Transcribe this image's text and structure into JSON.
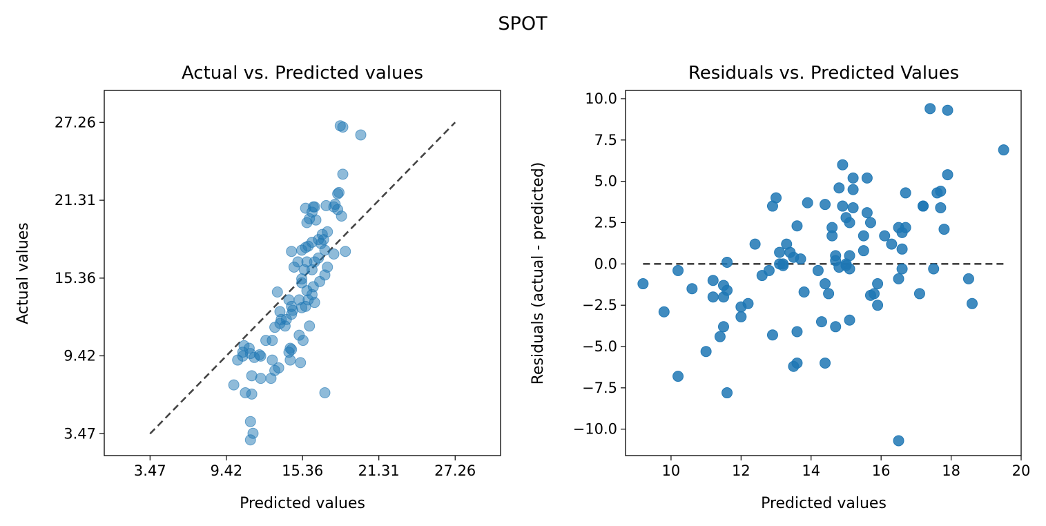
{
  "figure": {
    "suptitle": "SPOT"
  },
  "chart_data": [
    {
      "type": "scatter",
      "title": "Actual vs. Predicted values",
      "xlabel": "Predicted values",
      "ylabel": "Actual values",
      "xlim": [
        -0.1,
        30.8
      ],
      "ylim": [
        1.8,
        29.7
      ],
      "xticks": [
        3.47,
        9.42,
        15.36,
        21.31,
        27.26
      ],
      "xtick_labels": [
        "3.47",
        "9.42",
        "15.36",
        "21.31",
        "27.26"
      ],
      "yticks": [
        3.47,
        9.42,
        15.36,
        21.31,
        27.26
      ],
      "ytick_labels": [
        "3.47",
        "9.42",
        "15.36",
        "21.31",
        "27.26"
      ],
      "reference_line": {
        "x": [
          3.47,
          27.26
        ],
        "y": [
          3.47,
          27.26
        ],
        "style": "dashed",
        "color": "#444444"
      },
      "point_color": "#1f77b4",
      "point_alpha": 0.5,
      "grid": false,
      "x": [
        18.3,
        18.5,
        19.9,
        18.5,
        18.2,
        18.1,
        17.9,
        17.2,
        16.2,
        16.3,
        17.8,
        18.1,
        18.4,
        15.6,
        15.9,
        16.1,
        15.7,
        16.4,
        17.3,
        16.9,
        17.0,
        16.6,
        16.1,
        16.8,
        15.8,
        15.3,
        18.7,
        17.1,
        17.8,
        16.6,
        15.6,
        14.5,
        15.7,
        16.3,
        15.0,
        15.5,
        16.1,
        17.3,
        17.1,
        15.3,
        14.7,
        15.3,
        16.7,
        16.2,
        16.1,
        15.7,
        15.1,
        14.3,
        15.8,
        16.3,
        15.6,
        14.5,
        13.4,
        15.3,
        14.6,
        13.6,
        14.5,
        13.7,
        14.1,
        13.6,
        14.0,
        15.9,
        13.2,
        15.4,
        15.1,
        12.5,
        14.5,
        13.0,
        15.2,
        14.4,
        13.2,
        12.9,
        12.1,
        12.1,
        10.7,
        11.3,
        12.0,
        13.0,
        11.6,
        11.2,
        10.8,
        13.5,
        14.4,
        14.3,
        10.7,
        10.3,
        11.4,
        10.9,
        11.4,
        11.3,
        10.0,
        11.5,
        11.3,
        17.1
      ],
      "y": [
        27.0,
        26.9,
        26.3,
        23.3,
        21.9,
        21.8,
        21.0,
        20.9,
        20.8,
        20.8,
        20.8,
        20.6,
        20.1,
        20.7,
        19.9,
        20.4,
        19.6,
        19.8,
        18.9,
        18.7,
        18.3,
        18.3,
        18.1,
        18.0,
        17.8,
        17.5,
        17.4,
        17.5,
        17.2,
        16.9,
        17.7,
        17.4,
        16.6,
        16.6,
        16.6,
        16.0,
        16.0,
        16.2,
        15.6,
        15.3,
        16.2,
        15.0,
        15.1,
        14.7,
        14.1,
        14.4,
        13.7,
        13.7,
        13.7,
        13.5,
        13.2,
        13.2,
        14.3,
        13.1,
        12.9,
        12.8,
        12.6,
        12.2,
        12.2,
        11.9,
        11.7,
        11.7,
        11.6,
        10.6,
        11.0,
        10.6,
        9.9,
        10.6,
        8.9,
        9.1,
        8.3,
        7.7,
        7.7,
        9.4,
        9.4,
        9.6,
        9.5,
        9.1,
        9.3,
        10.0,
        10.2,
        8.5,
        10.0,
        9.7,
        9.7,
        9.1,
        7.9,
        6.6,
        6.5,
        4.4,
        7.2,
        3.5,
        3.0,
        6.6
      ]
    },
    {
      "type": "scatter",
      "title": "Residuals vs. Predicted Values",
      "xlabel": "Predicted values",
      "ylabel": "Residuals (actual - predicted)",
      "xlim": [
        8.7,
        20.0
      ],
      "ylim": [
        -11.6,
        10.5
      ],
      "xticks": [
        10,
        12,
        14,
        16,
        18,
        20
      ],
      "xtick_labels": [
        "10",
        "12",
        "14",
        "16",
        "18",
        "20"
      ],
      "yticks": [
        10.0,
        7.5,
        5.0,
        2.5,
        0.0,
        -2.5,
        -5.0,
        -7.5,
        -10.0
      ],
      "ytick_labels": [
        "10.0",
        "7.5",
        "5.0",
        "2.5",
        "0.0",
        "−2.5",
        "−5.0",
        "−7.5",
        "−10.0"
      ],
      "reference_line": {
        "x": [
          9.2,
          19.5
        ],
        "y": [
          0,
          0
        ],
        "style": "dashed",
        "color": "#444444"
      },
      "point_color": "#1f77b4",
      "point_alpha": 0.85,
      "grid": false,
      "x": [
        17.4,
        17.9,
        19.5,
        14.9,
        15.2,
        15.6,
        17.9,
        17.2,
        17.7,
        17.6,
        15.2,
        14.8,
        14.9,
        16.7,
        12.9,
        13.0,
        13.9,
        14.4,
        15.0,
        15.2,
        15.1,
        17.7,
        16.5,
        16.7,
        17.2,
        16.6,
        17.8,
        15.7,
        15.6,
        14.6,
        13.6,
        16.1,
        14.6,
        13.3,
        15.5,
        16.3,
        16.6,
        13.1,
        12.4,
        13.4,
        14.7,
        15.1,
        14.7,
        15.0,
        15.5,
        13.5,
        13.7,
        13.2,
        11.6,
        14.8,
        15.0,
        13.2,
        13.1,
        15.1,
        14.2,
        16.6,
        17.5,
        12.8,
        12.6,
        14.4,
        14.5,
        15.9,
        17.1,
        16.5,
        9.2,
        18.5,
        11.6,
        10.2,
        10.6,
        11.2,
        11.5,
        15.8,
        13.8,
        11.2,
        11.5,
        15.7,
        12.2,
        15.9,
        18.6,
        12.0,
        9.8,
        12.0,
        14.3,
        15.1,
        11.5,
        14.7,
        13.6,
        11.4,
        12.9,
        11.0,
        14.4,
        13.6,
        13.5,
        10.2,
        11.6,
        16.5
      ],
      "y": [
        9.4,
        9.3,
        6.9,
        6.0,
        5.2,
        5.2,
        5.4,
        3.5,
        4.4,
        4.3,
        4.5,
        4.6,
        3.5,
        4.3,
        3.5,
        4.0,
        3.7,
        3.6,
        2.8,
        3.4,
        2.5,
        3.4,
        2.2,
        2.2,
        3.5,
        1.9,
        2.1,
        2.5,
        3.1,
        2.2,
        2.3,
        1.7,
        1.7,
        1.2,
        1.7,
        1.2,
        0.9,
        0.7,
        1.2,
        0.7,
        0.5,
        0.5,
        0.2,
        0.0,
        0.8,
        0.4,
        0.3,
        0.0,
        0.1,
        -0.2,
        -0.1,
        -0.1,
        0.0,
        -0.3,
        -0.4,
        -0.3,
        -0.3,
        -0.4,
        -0.7,
        -1.2,
        -1.8,
        -1.2,
        -1.8,
        -0.9,
        -1.2,
        -0.9,
        -1.6,
        -0.4,
        -1.5,
        -1.0,
        -1.3,
        -1.8,
        -1.7,
        -2.0,
        -2.0,
        -1.9,
        -2.4,
        -2.5,
        -2.4,
        -2.6,
        -2.9,
        -3.2,
        -3.5,
        -3.4,
        -3.8,
        -3.8,
        -4.1,
        -4.4,
        -4.3,
        -5.3,
        -6.0,
        -6.0,
        -6.2,
        -6.8,
        -7.8,
        -10.7
      ]
    }
  ]
}
